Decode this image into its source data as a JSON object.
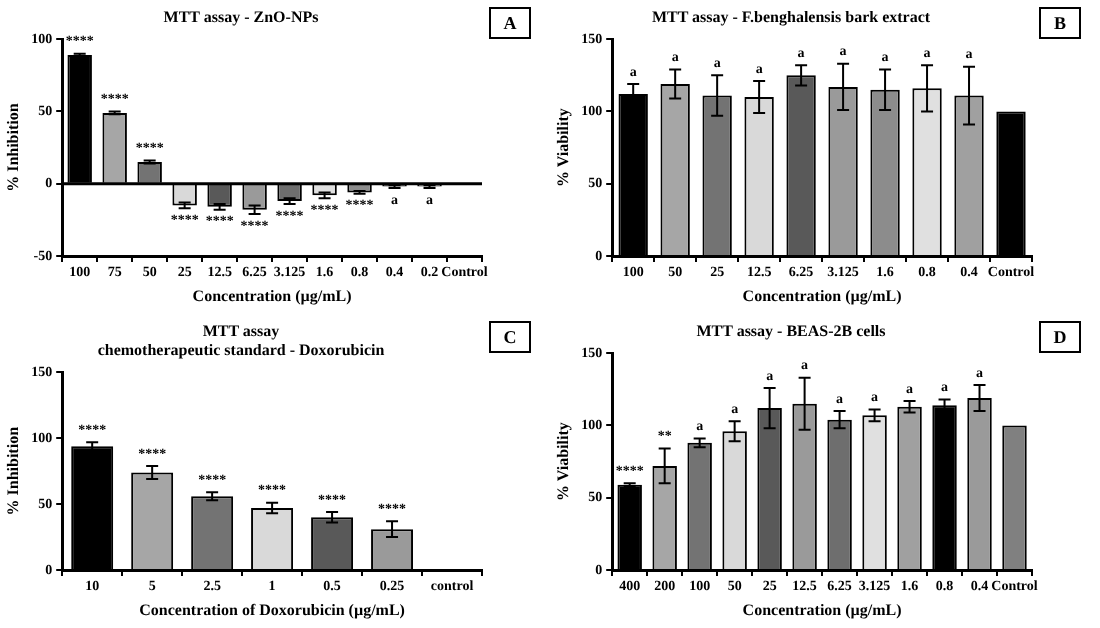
{
  "chart_data": [
    {
      "type": "bar",
      "title": "MTT assay - ZnO-NPs",
      "xlabel": "Concentration (µg/mL)",
      "ylabel": "% Inhibition",
      "categories": [
        "100",
        "75",
        "50",
        "25",
        "12.5",
        "6.25",
        "3.125",
        "1.6",
        "0.8",
        "0.4",
        "0.2",
        "Control"
      ],
      "values": [
        89,
        49,
        15,
        -15,
        -16,
        -18,
        -12,
        -8,
        -6,
        -2,
        -2,
        null
      ],
      "errors": [
        1,
        1,
        1,
        2,
        2,
        3,
        2,
        2,
        1,
        1,
        1,
        null
      ],
      "value_labels": [
        "****",
        "****",
        "****",
        "****",
        "****",
        "****",
        "****",
        "****",
        "****",
        "a",
        "a",
        null
      ],
      "colors": [
        "#000000",
        "#a6a6a6",
        "#737373",
        "#d9d9d9",
        "#595959",
        "#9a9a9a",
        "#6e6e6e",
        "#e0e0e0",
        "#8c8c8c",
        "#3a3a3a",
        "#7a7a7a",
        "#808080"
      ],
      "ylim": [
        -50,
        100
      ],
      "yticks": [
        -50,
        0,
        50,
        100
      ],
      "grid": false,
      "ref_lines": [
        {
          "axis": "y",
          "value": 0,
          "color": "#000000",
          "line_style": "solid"
        }
      ],
      "annotations": [
        "A"
      ]
    },
    {
      "type": "bar",
      "title": "MTT assay - F.benghalensis bark extract",
      "xlabel": "Concentration (µg/mL)",
      "ylabel": "% Viability",
      "categories": [
        "100",
        "50",
        "25",
        "12.5",
        "6.25",
        "3.125",
        "1.6",
        "0.8",
        "0.4",
        "Control"
      ],
      "values": [
        112,
        119,
        111,
        110,
        125,
        117,
        115,
        116,
        111,
        100
      ],
      "errors": [
        7,
        10,
        14,
        11,
        7,
        16,
        14,
        16,
        20,
        null
      ],
      "value_labels": [
        "a",
        "a",
        "a",
        "a",
        "a",
        "a",
        "a",
        "a",
        "a",
        null
      ],
      "colors": [
        "#000000",
        "#a6a6a6",
        "#737373",
        "#d9d9d9",
        "#595959",
        "#9a9a9a",
        "#8c8c8c",
        "#e0e0e0",
        "#a0a0a0",
        "#000000"
      ],
      "ylim": [
        0,
        150
      ],
      "yticks": [
        0,
        50,
        100,
        150
      ],
      "grid": false,
      "annotations": [
        "B"
      ]
    },
    {
      "type": "bar",
      "title": "MTT assay",
      "subtitle": "chemotherapeutic standard - Doxorubicin",
      "xlabel": "Concentration of Doxorubicin (µg/mL)",
      "ylabel": "% Inhibition",
      "categories": [
        "10",
        "5",
        "2.5",
        "1",
        "0.5",
        "0.25",
        "control"
      ],
      "values": [
        94,
        74,
        56,
        47,
        40,
        31,
        null
      ],
      "errors": [
        3,
        5,
        3,
        4,
        4,
        6,
        null
      ],
      "value_labels": [
        "****",
        "****",
        "****",
        "****",
        "****",
        "****",
        null
      ],
      "colors": [
        "#000000",
        "#a6a6a6",
        "#737373",
        "#d9d9d9",
        "#595959",
        "#9a9a9a",
        "#808080"
      ],
      "ylim": [
        0,
        150
      ],
      "yticks": [
        0,
        50,
        100,
        150
      ],
      "grid": false,
      "annotations": [
        "C"
      ]
    },
    {
      "type": "bar",
      "title": "MTT assay - BEAS-2B cells",
      "xlabel": "Concentration (µg/mL)",
      "ylabel": "% Viability",
      "categories": [
        "400",
        "200",
        "100",
        "50",
        "25",
        "12.5",
        "6.25",
        "3.125",
        "1.6",
        "0.8",
        "0.4",
        "Control"
      ],
      "values": [
        59,
        72,
        88,
        96,
        112,
        115,
        104,
        107,
        113,
        114,
        119,
        100
      ],
      "errors": [
        1,
        12,
        3,
        7,
        14,
        18,
        6,
        4,
        4,
        4,
        9,
        null
      ],
      "value_labels": [
        "****",
        "**",
        "a",
        "a",
        "a",
        "a",
        "a",
        "a",
        "a",
        "a",
        "a",
        null
      ],
      "colors": [
        "#000000",
        "#a6a6a6",
        "#737373",
        "#d9d9d9",
        "#595959",
        "#9a9a9a",
        "#6e6e6e",
        "#e0e0e0",
        "#a0a0a0",
        "#000000",
        "#9a9a9a",
        "#808080"
      ],
      "ylim": [
        0,
        150
      ],
      "yticks": [
        0,
        50,
        100,
        150
      ],
      "grid": false,
      "annotations": [
        "D"
      ]
    }
  ]
}
